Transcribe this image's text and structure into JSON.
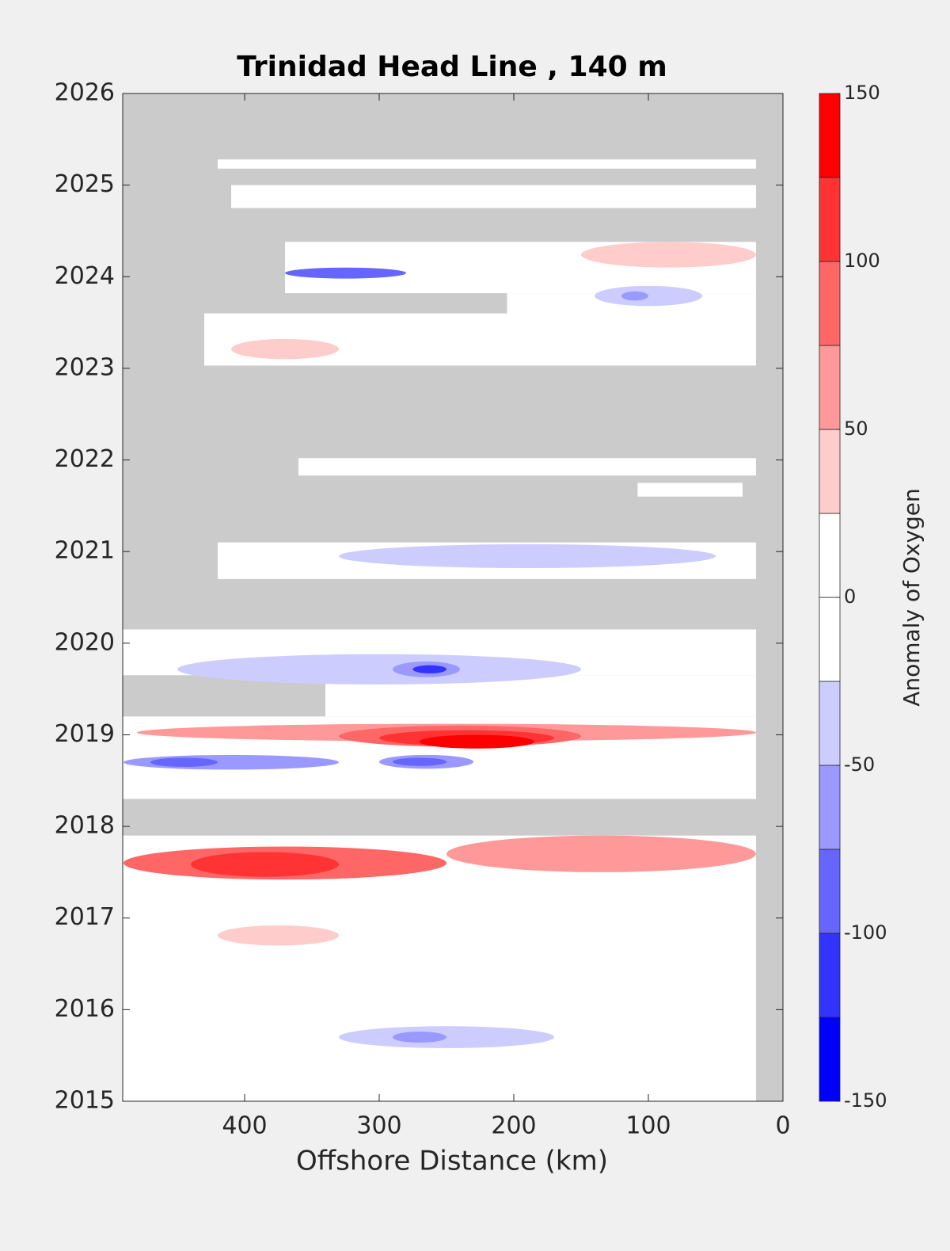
{
  "chart_data": {
    "type": "contour",
    "title": "Trinidad Head Line , 140 m",
    "x_label": "Offshore Distance (km)",
    "colorbar_label": "Anomaly of Oxygen",
    "xlim": [
      490.6,
      0
    ],
    "xticks": [
      400,
      300,
      200,
      100,
      0
    ],
    "ylim": [
      2015,
      2026
    ],
    "yticks": [
      2015,
      2016,
      2017,
      2018,
      2019,
      2020,
      2021,
      2022,
      2023,
      2024,
      2025,
      2026
    ],
    "levels": [
      -150,
      -125,
      -100,
      -75,
      -50,
      -25,
      0,
      25,
      50,
      75,
      100,
      125,
      150
    ],
    "colors": [
      "#0000ff",
      "#3333ff",
      "#6666ff",
      "#9999ff",
      "#ccccff",
      "#ffffff",
      "#ffffff",
      "#ffcccc",
      "#ff9999",
      "#ff6666",
      "#ff3333",
      "#ff0000"
    ],
    "cticks": [
      -150,
      -100,
      -50,
      0,
      50,
      100,
      150
    ],
    "missing_color": "#cbcbcb",
    "coverage": [
      {
        "x": [
          490.6,
          20
        ],
        "y": [
          2015,
          2017.9
        ]
      },
      {
        "x": [
          490.6,
          20
        ],
        "y": [
          2018.3,
          2019.2
        ]
      },
      {
        "x": [
          340,
          20
        ],
        "y": [
          2019.2,
          2019.65
        ]
      },
      {
        "x": [
          490.6,
          20
        ],
        "y": [
          2019.65,
          2020.15
        ]
      },
      {
        "x": [
          420,
          20
        ],
        "y": [
          2020.7,
          2021.1
        ]
      },
      {
        "x": [
          108,
          30
        ],
        "y": [
          2021.6,
          2021.75
        ]
      },
      {
        "x": [
          360,
          20
        ],
        "y": [
          2021.83,
          2022.02
        ]
      },
      {
        "x": [
          430,
          20
        ],
        "y": [
          2023.03,
          2023.6
        ]
      },
      {
        "x": [
          205,
          20
        ],
        "y": [
          2023.6,
          2023.82
        ]
      },
      {
        "x": [
          370,
          20
        ],
        "y": [
          2023.82,
          2024.38
        ]
      },
      {
        "x": [
          410,
          20
        ],
        "y": [
          2024.75,
          2025.0
        ]
      },
      {
        "x": [
          420,
          20
        ],
        "y": [
          2025.18,
          2025.28
        ]
      }
    ],
    "patches": [
      {
        "x": [
          480,
          20
        ],
        "y": [
          2018.93,
          2019.12
        ],
        "value": 60
      },
      {
        "x": [
          330,
          150
        ],
        "y": [
          2018.87,
          2019.1
        ],
        "value": 90
      },
      {
        "x": [
          300,
          170
        ],
        "y": [
          2018.88,
          2019.05
        ],
        "value": 110
      },
      {
        "x": [
          270,
          185
        ],
        "y": [
          2018.85,
          2019.0
        ],
        "value": 140
      },
      {
        "x": [
          490,
          330
        ],
        "y": [
          2018.62,
          2018.78
        ],
        "value": -60
      },
      {
        "x": [
          300,
          230
        ],
        "y": [
          2018.63,
          2018.78
        ],
        "value": -60
      },
      {
        "x": [
          470,
          420
        ],
        "y": [
          2018.65,
          2018.75
        ],
        "value": -90
      },
      {
        "x": [
          290,
          250
        ],
        "y": [
          2018.66,
          2018.75
        ],
        "value": -90
      },
      {
        "x": [
          490,
          250
        ],
        "y": [
          2017.42,
          2017.78
        ],
        "value": 90
      },
      {
        "x": [
          440,
          330
        ],
        "y": [
          2017.45,
          2017.72
        ],
        "value": 110
      },
      {
        "x": [
          250,
          20
        ],
        "y": [
          2017.5,
          2017.9
        ],
        "value": 60
      },
      {
        "x": [
          450,
          150
        ],
        "y": [
          2019.55,
          2019.88
        ],
        "value": -40
      },
      {
        "x": [
          290,
          240
        ],
        "y": [
          2019.63,
          2019.8
        ],
        "value": -60
      },
      {
        "x": [
          275,
          250
        ],
        "y": [
          2019.67,
          2019.76
        ],
        "value": -110
      },
      {
        "x": [
          370,
          280
        ],
        "y": [
          2023.98,
          2024.1
        ],
        "value": -90
      },
      {
        "x": [
          410,
          330
        ],
        "y": [
          2023.1,
          2023.32
        ],
        "value": 40
      },
      {
        "x": [
          150,
          20
        ],
        "y": [
          2024.1,
          2024.38
        ],
        "value": 40
      },
      {
        "x": [
          140,
          60
        ],
        "y": [
          2023.68,
          2023.9
        ],
        "value": -40
      },
      {
        "x": [
          120,
          100
        ],
        "y": [
          2023.74,
          2023.84
        ],
        "value": -60
      },
      {
        "x": [
          330,
          170
        ],
        "y": [
          2015.58,
          2015.82
        ],
        "value": -40
      },
      {
        "x": [
          290,
          250
        ],
        "y": [
          2015.64,
          2015.76
        ],
        "value": -60
      },
      {
        "x": [
          420,
          330
        ],
        "y": [
          2016.7,
          2016.92
        ],
        "value": 40
      },
      {
        "x": [
          330,
          50
        ],
        "y": [
          2020.82,
          2021.08
        ],
        "value": -40
      }
    ]
  }
}
